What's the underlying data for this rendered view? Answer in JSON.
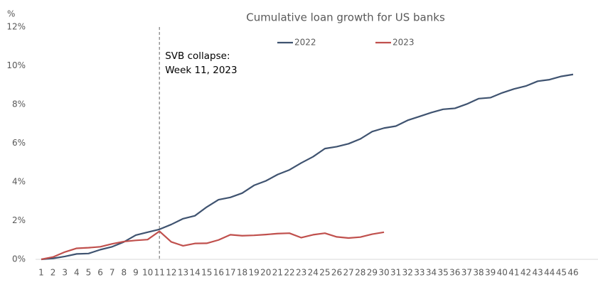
{
  "chart_data": {
    "type": "line",
    "title": "Cumulative loan growth for US banks",
    "y_unit": "%",
    "x": [
      1,
      2,
      3,
      4,
      5,
      6,
      7,
      8,
      9,
      10,
      11,
      12,
      13,
      14,
      15,
      16,
      17,
      18,
      19,
      20,
      21,
      22,
      23,
      24,
      25,
      26,
      27,
      28,
      29,
      30,
      31,
      32,
      33,
      34,
      35,
      36,
      37,
      38,
      39,
      40,
      41,
      42,
      43,
      44,
      45,
      46
    ],
    "series": [
      {
        "name": "2022",
        "color": "#3f5370",
        "values": [
          0,
          0.05,
          0.15,
          0.28,
          0.3,
          0.5,
          0.65,
          0.9,
          1.25,
          1.4,
          1.55,
          1.8,
          2.1,
          2.25,
          2.7,
          3.08,
          3.2,
          3.42,
          3.82,
          4.05,
          4.38,
          4.62,
          4.98,
          5.3,
          5.72,
          5.82,
          5.97,
          6.22,
          6.6,
          6.78,
          6.88,
          7.18,
          7.38,
          7.58,
          7.75,
          7.8,
          8.02,
          8.3,
          8.35,
          8.6,
          8.8,
          8.95,
          9.2,
          9.28,
          9.45,
          9.55
        ]
      },
      {
        "name": "2023",
        "color": "#c0504d",
        "values": [
          0,
          0.12,
          0.38,
          0.57,
          0.6,
          0.65,
          0.8,
          0.92,
          0.98,
          1.02,
          1.45,
          0.9,
          0.7,
          0.82,
          0.83,
          1.0,
          1.27,
          1.22,
          1.24,
          1.28,
          1.33,
          1.35,
          1.12,
          1.27,
          1.35,
          1.16,
          1.1,
          1.15,
          1.3,
          1.4,
          null,
          null,
          null,
          null,
          null,
          null,
          null,
          null,
          null,
          null,
          null,
          null,
          null,
          null,
          null,
          null
        ]
      }
    ],
    "ylim": [
      0,
      12
    ],
    "yticks": [
      {
        "value": 0,
        "label": "0%"
      },
      {
        "value": 2,
        "label": "2%"
      },
      {
        "value": 4,
        "label": "4%"
      },
      {
        "value": 6,
        "label": "6%"
      },
      {
        "value": 8,
        "label": "8%"
      },
      {
        "value": 10,
        "label": "10%"
      },
      {
        "value": 12,
        "label": "12%"
      }
    ],
    "annotation": {
      "x": 11,
      "lines": [
        "SVB collapse:",
        "Week 11, 2023"
      ]
    },
    "legend": "top"
  }
}
